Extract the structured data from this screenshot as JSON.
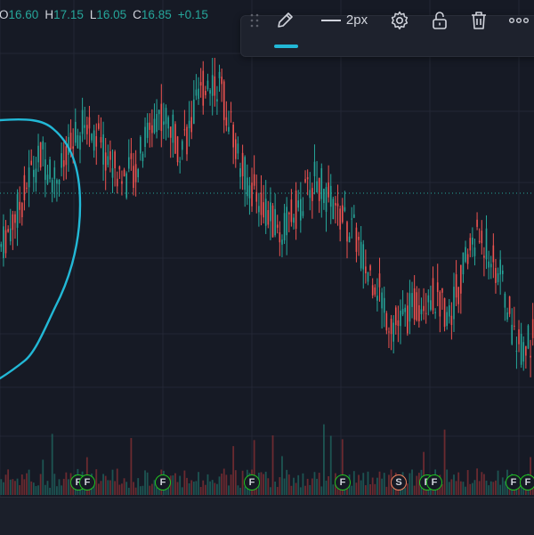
{
  "ohlc": {
    "o_label": "O",
    "o_value": "16.60",
    "h_label": "H",
    "h_value": "17.15",
    "l_label": "L",
    "l_value": "16.05",
    "c_label": "C",
    "c_value": "16.85",
    "change": "+0.15"
  },
  "toolbar": {
    "line_width_label": "2px",
    "icons": [
      "drag-handle-icon",
      "pencil-icon",
      "line-style-icon",
      "gear-icon",
      "unlock-icon",
      "trash-icon",
      "more-icon"
    ],
    "accent_color": "#22b8d6"
  },
  "events": [
    {
      "type": "F"
    },
    {
      "type": "F"
    },
    {
      "type": "F"
    },
    {
      "type": "F"
    },
    {
      "type": "F"
    },
    {
      "type": "F"
    },
    {
      "type": "S"
    },
    {
      "type": "F"
    },
    {
      "type": "F"
    },
    {
      "type": "F"
    },
    {
      "type": "F"
    }
  ],
  "colors": {
    "background": "#161a25",
    "up": "#26a69a",
    "down": "#ef5350",
    "drawing": "#22b8d6",
    "event_f": "#21c421",
    "event_s": "#f0845e"
  },
  "chart_data": {
    "type": "candlestick",
    "description_values_only": true,
    "price_path": [
      16.2,
      16.4,
      16.6,
      16.9,
      17.0,
      16.8,
      16.9,
      17.1,
      17.3,
      17.2,
      17.0,
      16.9,
      16.8,
      16.9,
      17.2,
      17.4,
      17.3,
      17.1,
      17.2,
      17.5,
      17.7,
      17.6,
      17.3,
      16.9,
      16.7,
      16.6,
      16.4,
      16.3,
      16.5,
      16.6,
      16.8,
      16.7,
      16.5,
      16.4,
      16.3,
      16.0,
      15.9,
      15.6,
      15.5,
      15.6,
      15.7,
      15.8,
      15.7,
      15.6,
      15.9,
      16.2,
      16.3,
      16.1,
      15.9,
      15.5,
      15.3,
      15.4
    ],
    "volume_pattern": "low_bars_with_spikes"
  }
}
